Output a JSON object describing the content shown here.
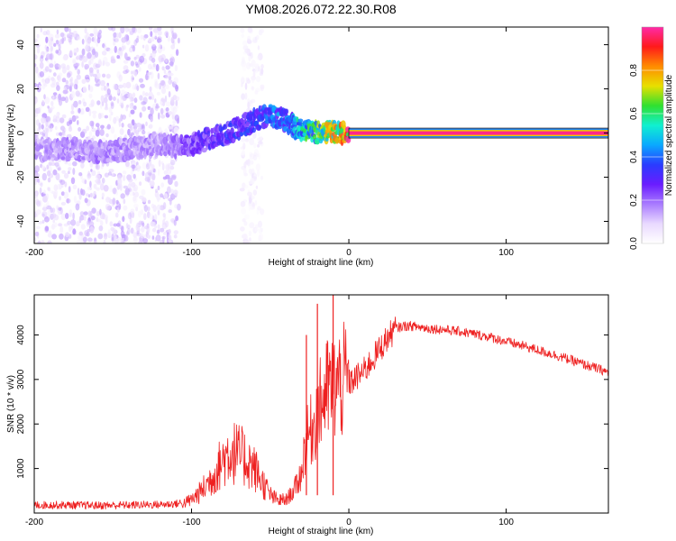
{
  "title": "YM08.2026.072.22.30.R08",
  "colors": {
    "line": "#ee2020",
    "colorscale": [
      "#ffffff",
      "#e9d9ff",
      "#a97bff",
      "#6a1cff",
      "#2a3cff",
      "#0aa8ff",
      "#10f0d0",
      "#30e030",
      "#e8e000",
      "#ff8c00",
      "#ff1a1a",
      "#ff2aa8"
    ]
  },
  "chart_data": [
    {
      "type": "heatmap",
      "xlabel": "Height of straight line (km)",
      "ylabel": "Frequency (Hz)",
      "xlim": [
        -200,
        165
      ],
      "ylim": [
        -50,
        48
      ],
      "xticks": [
        -200,
        -100,
        0,
        100
      ],
      "xtick_labels": [
        "-200",
        "-100",
        "0",
        "100"
      ],
      "yticks": [
        -40,
        -20,
        0,
        20,
        40
      ],
      "ytick_labels": [
        "-40",
        "-20",
        "0",
        "20",
        "40"
      ],
      "colorbar": {
        "label": "Normalized spectral amplitude",
        "range": [
          0,
          1
        ],
        "ticks": [
          0.0,
          0.2,
          0.4,
          0.6,
          0.8
        ],
        "tick_labels": [
          "0.0",
          "0.2",
          "0.4",
          "0.6",
          "0.8"
        ]
      },
      "ridge": {
        "x": [
          -200,
          -180,
          -160,
          -140,
          -120,
          -110,
          -100,
          -90,
          -80,
          -70,
          -60,
          -50,
          -40,
          -35,
          -30,
          -20,
          -10,
          -5,
          0
        ],
        "freq": [
          -8,
          -7,
          -9,
          -7,
          -5,
          -6,
          -5,
          -3,
          -1,
          2,
          6,
          8,
          6,
          3,
          1,
          0,
          0,
          0,
          0
        ],
        "amplitude": [
          0.15,
          0.17,
          0.18,
          0.17,
          0.16,
          0.2,
          0.25,
          0.28,
          0.3,
          0.32,
          0.33,
          0.38,
          0.42,
          0.45,
          0.55,
          0.6,
          0.7,
          0.8,
          0.95
        ]
      },
      "constant_tone": {
        "x_start": 0,
        "x_end": 165,
        "freq": 0,
        "amplitude": 0.98
      },
      "noise_regions": [
        {
          "x_start": -200,
          "x_end": -108,
          "freq_range": [
            -50,
            48
          ],
          "amplitude": 0.12
        },
        {
          "x_start": -68,
          "x_end": -55,
          "freq_range": [
            -50,
            48
          ],
          "amplitude": 0.05
        }
      ]
    },
    {
      "type": "line",
      "xlabel": "Height of straight line (km)",
      "ylabel": "SNR (10 * v/v)",
      "xlim": [
        -200,
        165
      ],
      "ylim": [
        0,
        4900
      ],
      "xticks": [
        -200,
        -100,
        0,
        100
      ],
      "xtick_labels": [
        "-200",
        "-100",
        "0",
        "100"
      ],
      "yticks": [
        1000,
        2000,
        3000,
        4000
      ],
      "ytick_labels": [
        "1000",
        "2000",
        "3000",
        "4000"
      ],
      "series": [
        {
          "name": "SNR",
          "x": [
            -200,
            -180,
            -160,
            -140,
            -120,
            -105,
            -100,
            -95,
            -90,
            -85,
            -80,
            -75,
            -70,
            -65,
            -60,
            -55,
            -50,
            -45,
            -40,
            -35,
            -30,
            -28,
            -25,
            -22,
            -20,
            -17,
            -15,
            -12,
            -10,
            -7,
            -5,
            -2,
            0,
            5,
            10,
            15,
            20,
            25,
            30,
            35,
            40,
            50,
            60,
            70,
            80,
            90,
            100,
            110,
            120,
            130,
            140,
            150,
            160,
            165
          ],
          "values": [
            180,
            180,
            170,
            180,
            190,
            220,
            300,
            450,
            650,
            900,
            1200,
            1400,
            1300,
            1200,
            1000,
            700,
            400,
            280,
            300,
            500,
            900,
            1500,
            1800,
            2000,
            2300,
            2500,
            2700,
            2800,
            2800,
            2900,
            2900,
            3000,
            2900,
            3050,
            3200,
            3450,
            3700,
            3950,
            4150,
            4200,
            4200,
            4150,
            4120,
            4080,
            4020,
            3950,
            3850,
            3760,
            3660,
            3560,
            3450,
            3330,
            3220,
            3150
          ],
          "spikes": [
            {
              "x": -27,
              "value": 4000
            },
            {
              "x": -20,
              "value": 4700
            },
            {
              "x": -10,
              "value": 4900
            }
          ]
        }
      ]
    }
  ]
}
